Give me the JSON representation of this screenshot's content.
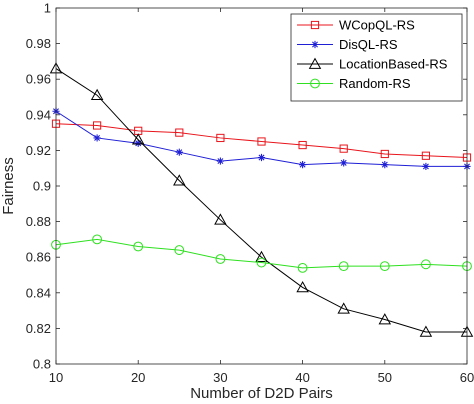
{
  "chart_data": {
    "type": "line",
    "title": "",
    "xlabel": "Number of D2D Pairs",
    "ylabel": "Fairness",
    "xlim": [
      10,
      60
    ],
    "ylim": [
      0.8,
      1.0
    ],
    "xticks": [
      10,
      20,
      30,
      40,
      50,
      60
    ],
    "xtick_labels": [
      "10",
      "20",
      "30",
      "40",
      "50",
      "60"
    ],
    "yticks": [
      0.8,
      0.82,
      0.84,
      0.86,
      0.88,
      0.9,
      0.92,
      0.94,
      0.96,
      0.98,
      1.0
    ],
    "ytick_labels": [
      "0.8",
      "0.82",
      "0.84",
      "0.86",
      "0.88",
      "0.9",
      "0.92",
      "0.94",
      "0.96",
      "0.98",
      "1"
    ],
    "grid": false,
    "legend_position": "top-right",
    "x": [
      10,
      15,
      20,
      25,
      30,
      35,
      40,
      45,
      50,
      55,
      60
    ],
    "series": [
      {
        "name": "WCopQL-RS",
        "color": "#e8141b",
        "marker": "square",
        "values": [
          0.935,
          0.934,
          0.931,
          0.93,
          0.927,
          0.925,
          0.923,
          0.921,
          0.918,
          0.917,
          0.916
        ]
      },
      {
        "name": "DisQL-RS",
        "color": "#1f1fd6",
        "marker": "asterisk",
        "values": [
          0.942,
          0.927,
          0.924,
          0.919,
          0.914,
          0.916,
          0.912,
          0.913,
          0.912,
          0.911,
          0.911
        ]
      },
      {
        "name": "LocationBased-RS",
        "color": "#000000",
        "marker": "triangle",
        "values": [
          0.966,
          0.951,
          0.926,
          0.903,
          0.881,
          0.86,
          0.843,
          0.831,
          0.825,
          0.818,
          0.818
        ]
      },
      {
        "name": "Random-RS",
        "color": "#2ee01f",
        "marker": "circle",
        "values": [
          0.867,
          0.87,
          0.866,
          0.864,
          0.859,
          0.857,
          0.854,
          0.855,
          0.855,
          0.856,
          0.855
        ]
      }
    ]
  }
}
